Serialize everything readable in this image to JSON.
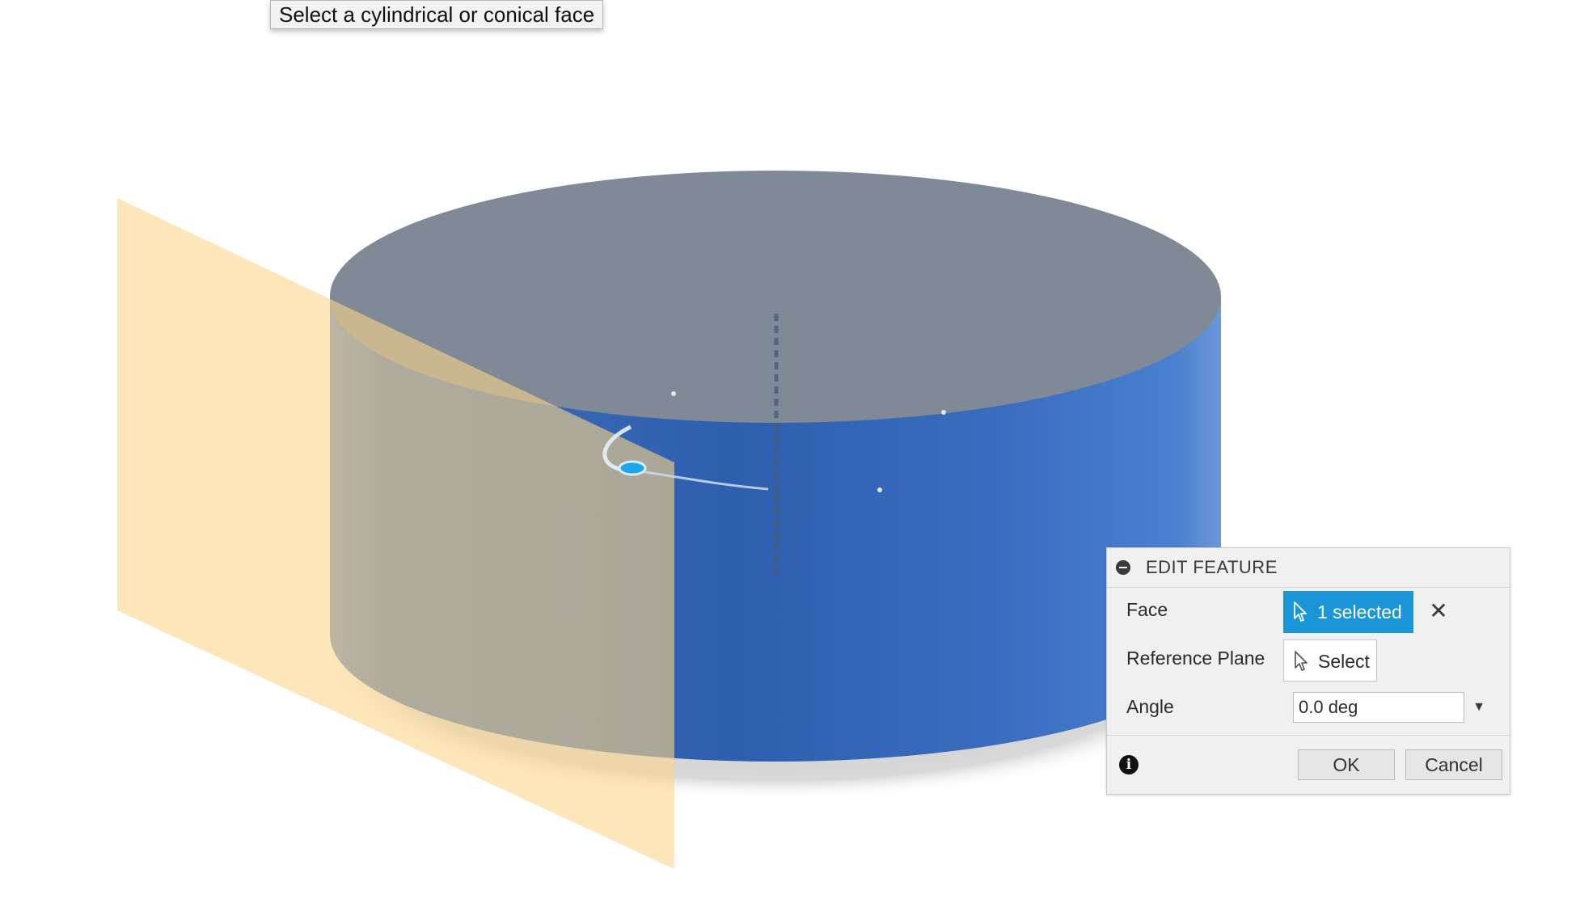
{
  "tooltip": {
    "text": "Select a cylindrical or conical face"
  },
  "panel": {
    "title": "EDIT FEATURE",
    "face": {
      "label": "Face",
      "selection": "1 selected"
    },
    "reference_plane": {
      "label": "Reference Plane",
      "selection": "Select"
    },
    "angle": {
      "label": "Angle",
      "value": "0.0 deg"
    },
    "buttons": {
      "ok": "OK",
      "cancel": "Cancel"
    }
  },
  "colors": {
    "cylinder_side": "#3a6fbf",
    "cylinder_top": "#7f8a96",
    "plane": "#fcd68a",
    "selection_accent": "#1a96d8"
  },
  "icons": {
    "collapse": "minus-circle-icon",
    "selected_cursor": "cursor-arrow-icon",
    "select_cursor": "cursor-arrow-icon",
    "clear": "close-x-icon",
    "dropdown": "triangle-down-icon",
    "info": "info-circle-icon"
  }
}
